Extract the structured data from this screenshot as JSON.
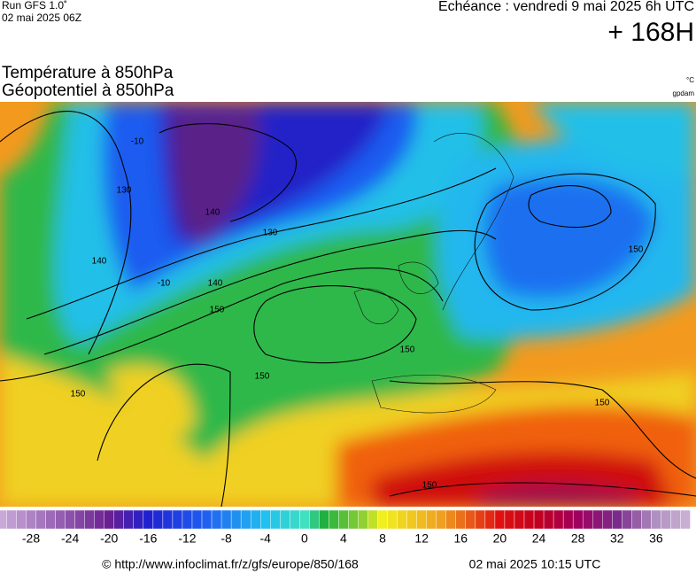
{
  "header": {
    "run": "Run GFS 1.0˚",
    "run_date": "02 mai 2025 06Z",
    "echeance": "Echéance : vendredi 9 mai 2025 6h UTC",
    "lead": "+ 168H"
  },
  "titles": {
    "line1": "Température à 850hPa",
    "line2": "Géopotentiel à 850hPa",
    "unit1": "°C",
    "unit2": "gpdam"
  },
  "map": {
    "contour_labels": [
      "150",
      "140",
      "130",
      "150",
      "150",
      "140",
      "150",
      "150",
      "150",
      "150",
      "130",
      "140",
      "-10",
      "-10"
    ]
  },
  "colorbar": {
    "ticks": [
      -28,
      -24,
      -20,
      -16,
      -12,
      -8,
      -4,
      0,
      4,
      8,
      12,
      16,
      20,
      24,
      28,
      32,
      36
    ]
  },
  "footer": {
    "url": "© http://www.infoclimat.fr/z/gfs/europe/850/168",
    "date": "02 mai 2025 10:15 UTC"
  }
}
